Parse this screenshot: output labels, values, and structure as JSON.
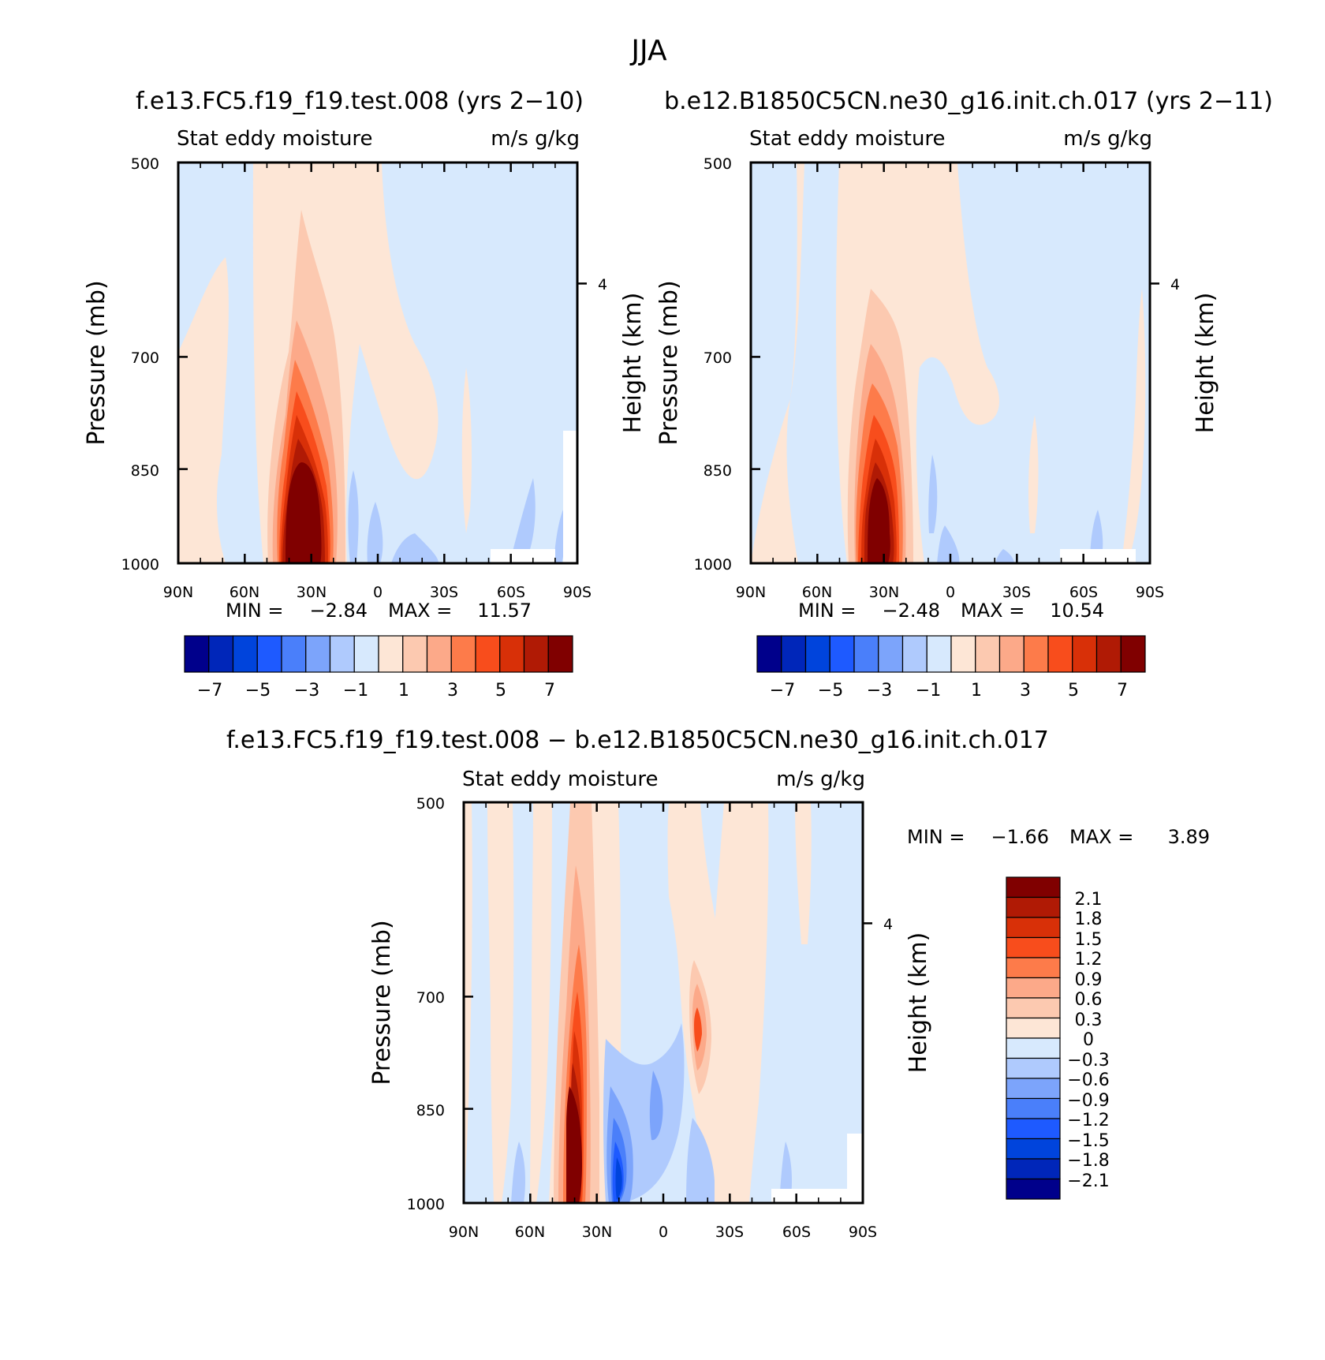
{
  "figure_title": "JJA",
  "chart_data": [
    {
      "type": "heatmap",
      "case_title": "f.e13.FC5.f19_f19.test.008 (yrs 2−10)",
      "left_label": "Stat eddy moisture",
      "right_label": "m/s g/kg",
      "ylabel": "Pressure (mb)",
      "y2label": "Height (km)",
      "x_ticks": [
        "90N",
        "60N",
        "30N",
        "0",
        "30S",
        "60S",
        "90S"
      ],
      "y_ticks": [
        "500",
        "700",
        "850",
        "1000"
      ],
      "y2_ticks": [
        "4"
      ],
      "ylim": [
        1000,
        500
      ],
      "min_text": "MIN =",
      "min_value": "−2.84",
      "max_text": "MAX =",
      "max_value": "11.57",
      "peak": {
        "lat": 30,
        "value": 11.57
      },
      "colorbar": {
        "levels": [
          "−7",
          "−5",
          "−3",
          "−1",
          "1",
          "3",
          "5",
          "7"
        ]
      }
    },
    {
      "type": "heatmap",
      "case_title": "b.e12.B1850C5CN.ne30_g16.init.ch.017 (yrs 2−11)",
      "left_label": "Stat eddy moisture",
      "right_label": "m/s g/kg",
      "ylabel": "Pressure (mb)",
      "y2label": "Height (km)",
      "x_ticks": [
        "90N",
        "60N",
        "30N",
        "0",
        "30S",
        "60S",
        "90S"
      ],
      "y_ticks": [
        "500",
        "700",
        "850",
        "1000"
      ],
      "y2_ticks": [
        "4"
      ],
      "ylim": [
        1000,
        500
      ],
      "min_text": "MIN =",
      "min_value": "−2.48",
      "max_text": "MAX =",
      "max_value": "10.54",
      "peak": {
        "lat": 30,
        "value": 10.54
      },
      "colorbar": {
        "levels": [
          "−7",
          "−5",
          "−3",
          "−1",
          "1",
          "3",
          "5",
          "7"
        ]
      }
    },
    {
      "type": "heatmap",
      "case_title": "f.e13.FC5.f19_f19.test.008 − b.e12.B1850C5CN.ne30_g16.init.ch.017",
      "left_label": "Stat eddy moisture",
      "right_label": "m/s g/kg",
      "ylabel": "Pressure (mb)",
      "y2label": "Height (km)",
      "x_ticks": [
        "90N",
        "60N",
        "30N",
        "0",
        "30S",
        "60S",
        "90S"
      ],
      "y_ticks": [
        "500",
        "700",
        "850",
        "1000"
      ],
      "y2_ticks": [
        "4"
      ],
      "ylim": [
        1000,
        500
      ],
      "min_text": "MIN =",
      "min_value": "−1.66",
      "max_text": "MAX =",
      "max_value": "3.89",
      "peak": {
        "lat": 40,
        "value": 3.89
      },
      "colorbar": {
        "levels": [
          "2.1",
          "1.8",
          "1.5",
          "1.2",
          "0.9",
          "0.6",
          "0.3",
          "0",
          "−0.3",
          "−0.6",
          "−0.9",
          "−1.2",
          "−1.5",
          "−1.8",
          "−2.1"
        ]
      }
    }
  ],
  "colors": {
    "palette": [
      "#00008b",
      "#0026b9",
      "#0044dc",
      "#1e5aff",
      "#4a7ffa",
      "#7ca4fb",
      "#afcafd",
      "#d7e9fd",
      "#fde6d6",
      "#fcc9b0",
      "#fca989",
      "#fd7b4a",
      "#f84d1c",
      "#d83008",
      "#b01a05",
      "#800000"
    ]
  }
}
